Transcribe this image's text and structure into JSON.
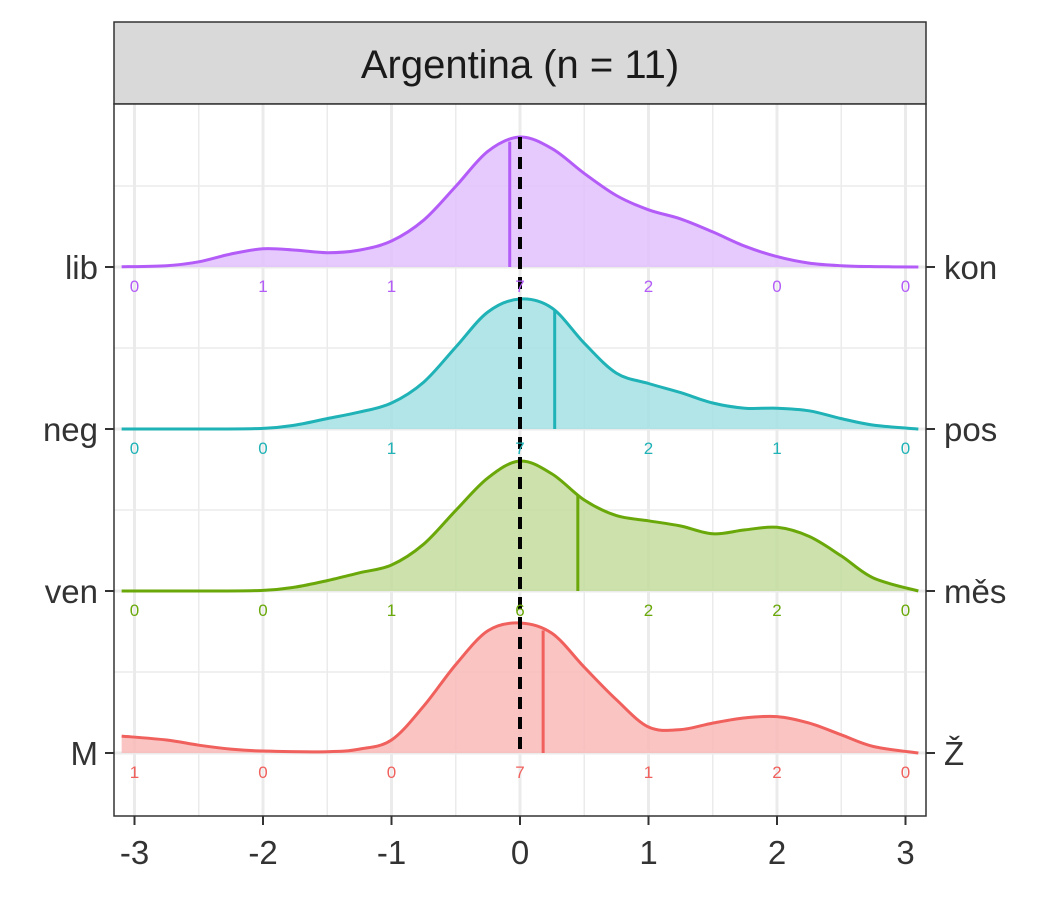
{
  "chart_data": {
    "type": "ridgeline-density",
    "facet_title": "Argentina (n = 11)",
    "xlim": [
      -3.1,
      3.1
    ],
    "x_ticks": [
      -3,
      -2,
      -1,
      0,
      1,
      2,
      3
    ],
    "x_tick_labels": [
      "-3",
      "-2",
      "-1",
      "0",
      "1",
      "2",
      "3"
    ],
    "count_positions": [
      -3,
      -2,
      -1,
      0,
      1,
      2,
      3
    ],
    "reference_line_x": 0,
    "grid": true,
    "series": [
      {
        "left_label": "lib",
        "right_label": "kon",
        "color": "#b35cf7",
        "fill": "#e2bffd",
        "mean": -0.08,
        "counts": [
          "0",
          "1",
          "1",
          "7",
          "2",
          "0",
          "0"
        ],
        "density": [
          [
            -3.1,
            0.002
          ],
          [
            -2.75,
            0.01
          ],
          [
            -2.5,
            0.04
          ],
          [
            -2.25,
            0.1
          ],
          [
            -2,
            0.14
          ],
          [
            -1.75,
            0.13
          ],
          [
            -1.5,
            0.11
          ],
          [
            -1.25,
            0.13
          ],
          [
            -1,
            0.2
          ],
          [
            -0.75,
            0.36
          ],
          [
            -0.5,
            0.62
          ],
          [
            -0.25,
            0.89
          ],
          [
            0,
            1.0
          ],
          [
            0.25,
            0.91
          ],
          [
            0.5,
            0.72
          ],
          [
            0.75,
            0.55
          ],
          [
            1,
            0.44
          ],
          [
            1.25,
            0.37
          ],
          [
            1.5,
            0.27
          ],
          [
            1.75,
            0.16
          ],
          [
            2,
            0.08
          ],
          [
            2.25,
            0.03
          ],
          [
            2.5,
            0.01
          ],
          [
            2.75,
            0.003
          ],
          [
            3.1,
            0.0
          ]
        ]
      },
      {
        "left_label": "neg",
        "right_label": "pos",
        "color": "#1fb2b6",
        "fill": "#a5e1e3",
        "mean": 0.27,
        "counts": [
          "0",
          "0",
          "1",
          "7",
          "2",
          "1",
          "0"
        ],
        "density": [
          [
            -3.1,
            0.0
          ],
          [
            -2.5,
            0.0
          ],
          [
            -2,
            0.005
          ],
          [
            -1.75,
            0.03
          ],
          [
            -1.5,
            0.08
          ],
          [
            -1.25,
            0.13
          ],
          [
            -1,
            0.2
          ],
          [
            -0.75,
            0.36
          ],
          [
            -0.5,
            0.63
          ],
          [
            -0.25,
            0.9
          ],
          [
            0,
            1.0
          ],
          [
            0.25,
            0.93
          ],
          [
            0.5,
            0.66
          ],
          [
            0.75,
            0.43
          ],
          [
            1,
            0.35
          ],
          [
            1.25,
            0.28
          ],
          [
            1.5,
            0.2
          ],
          [
            1.75,
            0.16
          ],
          [
            2,
            0.16
          ],
          [
            2.25,
            0.14
          ],
          [
            2.5,
            0.08
          ],
          [
            2.75,
            0.03
          ],
          [
            3.1,
            0.0
          ]
        ]
      },
      {
        "left_label": "ven",
        "right_label": "měs",
        "color": "#6aa80a",
        "fill": "#c3dc9c",
        "mean": 0.45,
        "counts": [
          "0",
          "0",
          "1",
          "6",
          "2",
          "2",
          "0"
        ],
        "density": [
          [
            -3.1,
            0.0
          ],
          [
            -2.5,
            0.0
          ],
          [
            -2,
            0.005
          ],
          [
            -1.75,
            0.03
          ],
          [
            -1.5,
            0.08
          ],
          [
            -1.25,
            0.14
          ],
          [
            -1,
            0.2
          ],
          [
            -0.75,
            0.36
          ],
          [
            -0.5,
            0.62
          ],
          [
            -0.25,
            0.87
          ],
          [
            0,
            1.0
          ],
          [
            0.25,
            0.9
          ],
          [
            0.5,
            0.7
          ],
          [
            0.75,
            0.58
          ],
          [
            1,
            0.54
          ],
          [
            1.25,
            0.5
          ],
          [
            1.5,
            0.44
          ],
          [
            1.75,
            0.47
          ],
          [
            2,
            0.49
          ],
          [
            2.25,
            0.42
          ],
          [
            2.5,
            0.27
          ],
          [
            2.75,
            0.1
          ],
          [
            3.1,
            0.0
          ]
        ]
      },
      {
        "left_label": "M",
        "right_label": "Ž",
        "color": "#f0605c",
        "fill": "#f9bab8",
        "mean": 0.18,
        "counts": [
          "1",
          "0",
          "0",
          "7",
          "1",
          "2",
          "0"
        ],
        "density": [
          [
            -3.1,
            0.13
          ],
          [
            -2.75,
            0.1
          ],
          [
            -2.5,
            0.06
          ],
          [
            -2.25,
            0.03
          ],
          [
            -2,
            0.015
          ],
          [
            -1.5,
            0.01
          ],
          [
            -1.25,
            0.03
          ],
          [
            -1,
            0.1
          ],
          [
            -0.75,
            0.36
          ],
          [
            -0.5,
            0.68
          ],
          [
            -0.25,
            0.94
          ],
          [
            0,
            1.0
          ],
          [
            0.25,
            0.92
          ],
          [
            0.5,
            0.66
          ],
          [
            0.75,
            0.41
          ],
          [
            1,
            0.2
          ],
          [
            1.25,
            0.18
          ],
          [
            1.5,
            0.23
          ],
          [
            1.75,
            0.27
          ],
          [
            2,
            0.28
          ],
          [
            2.25,
            0.23
          ],
          [
            2.5,
            0.14
          ],
          [
            2.75,
            0.05
          ],
          [
            3.1,
            0.0
          ]
        ]
      }
    ]
  }
}
